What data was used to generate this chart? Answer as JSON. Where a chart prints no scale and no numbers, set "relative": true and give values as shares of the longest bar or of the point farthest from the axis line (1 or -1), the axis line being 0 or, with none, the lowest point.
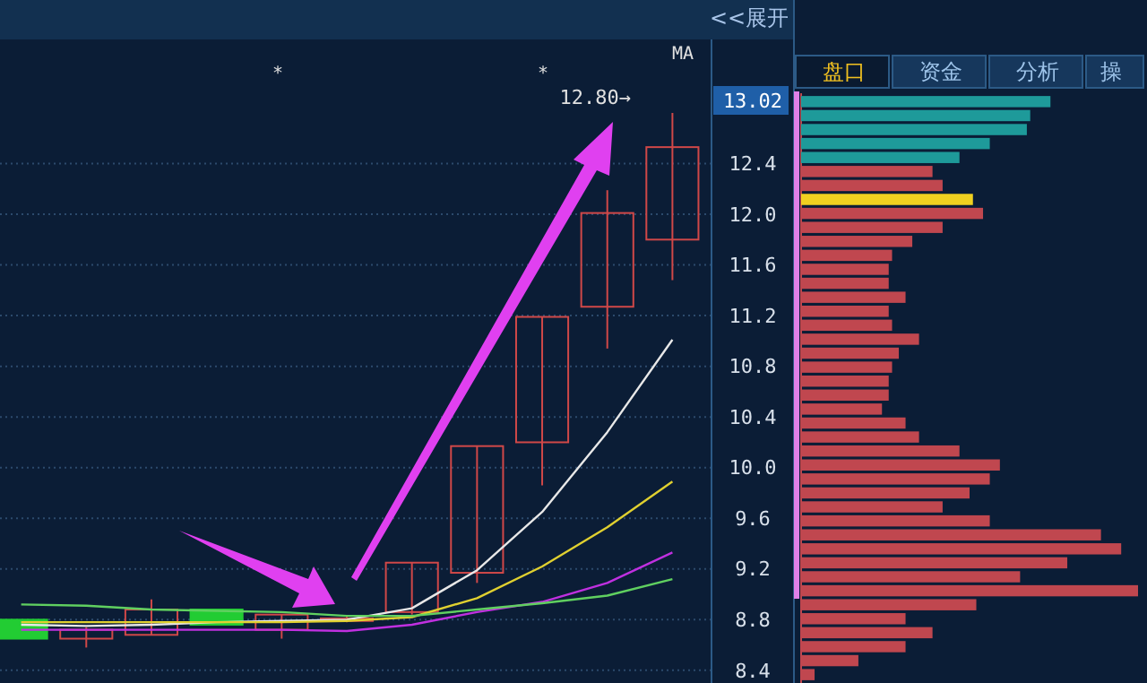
{
  "chart_data": [
    {
      "type": "candlestick",
      "categories": [
        null,
        null,
        null,
        null,
        null,
        null,
        null,
        null,
        null,
        null,
        null
      ],
      "ohlc": [
        [
          8.8,
          8.8,
          8.65,
          8.65
        ],
        [
          8.65,
          8.74,
          8.58,
          8.72
        ],
        [
          8.68,
          8.96,
          8.68,
          8.88
        ],
        [
          8.88,
          8.88,
          8.76,
          8.76
        ],
        [
          8.72,
          8.84,
          8.65,
          8.84
        ],
        [
          8.79,
          8.83,
          8.78,
          8.81
        ],
        [
          8.86,
          9.25,
          8.84,
          9.25
        ],
        [
          9.17,
          10.17,
          9.09,
          10.17
        ],
        [
          10.2,
          11.19,
          9.86,
          11.19
        ],
        [
          11.27,
          12.19,
          10.94,
          12.01
        ],
        [
          11.8,
          12.8,
          11.48,
          12.53
        ]
      ],
      "series": [
        {
          "type": "line",
          "color": "#e8e8e8",
          "values": [
            8.76,
            8.75,
            8.76,
            8.78,
            8.79,
            8.8,
            8.89,
            9.19,
            9.65,
            10.28,
            11.01
          ]
        },
        {
          "type": "line",
          "color": "#e0d030",
          "values": [
            8.78,
            8.78,
            8.78,
            8.78,
            8.78,
            8.79,
            8.82,
            8.97,
            9.22,
            9.53,
            9.89
          ]
        },
        {
          "type": "line",
          "color": "#c030e0",
          "values": [
            8.72,
            8.72,
            8.72,
            8.72,
            8.72,
            8.71,
            8.76,
            8.86,
            8.94,
            9.09,
            9.33
          ]
        },
        {
          "type": "line",
          "color": "#60d060",
          "values": [
            8.92,
            8.91,
            8.88,
            8.87,
            8.86,
            8.83,
            8.83,
            8.88,
            8.93,
            8.99,
            9.12
          ]
        }
      ],
      "ylim": [
        8.3,
        13.38
      ],
      "yticks": [
        8.4,
        8.8,
        9.2,
        9.6,
        {
          "value": 10,
          "label": "10.0"
        },
        10.4,
        10.8,
        11.2,
        11.6,
        {
          "value": 12,
          "label": "12.0"
        },
        12.4
      ],
      "grid": "y",
      "annotations": [
        "*",
        "*",
        "MA",
        "<<展开",
        "12.80→",
        "13.02"
      ]
    },
    {
      "type": "bar",
      "orientation": "horizontal",
      "relative": true,
      "categories": [
        null,
        null,
        null,
        null,
        null,
        null,
        null,
        null,
        null,
        null,
        null,
        null,
        null,
        null,
        null,
        null,
        null,
        null,
        null,
        null,
        null,
        null,
        null,
        null,
        null,
        null,
        null,
        null,
        null,
        null,
        null,
        null,
        null,
        null,
        null,
        null,
        null,
        null,
        null,
        null,
        null,
        null
      ],
      "values": [
        0.74,
        0.68,
        0.67,
        0.56,
        0.47,
        0.39,
        0.42,
        0.51,
        0.54,
        0.42,
        0.33,
        0.27,
        0.26,
        0.26,
        0.31,
        0.26,
        0.27,
        0.35,
        0.29,
        0.27,
        0.26,
        0.26,
        0.24,
        0.31,
        0.35,
        0.47,
        0.59,
        0.56,
        0.5,
        0.42,
        0.56,
        0.89,
        0.95,
        0.79,
        0.65,
        1,
        0.52,
        0.31,
        0.39,
        0.31,
        0.17,
        0.04
      ],
      "colors": [
        "#1e9a9a",
        "#1e9a9a",
        "#1e9a9a",
        "#1e9a9a",
        "#1e9a9a",
        "#c0474f",
        "#c0474f",
        "#f0d020",
        "#c0474f",
        "#c0474f",
        "#c0474f",
        "#c0474f",
        "#c0474f",
        "#c0474f",
        "#c0474f",
        "#c0474f",
        "#c0474f",
        "#c0474f",
        "#c0474f",
        "#c0474f",
        "#c0474f",
        "#c0474f",
        "#c0474f",
        "#c0474f",
        "#c0474f",
        "#c0474f",
        "#c0474f",
        "#c0474f",
        "#c0474f",
        "#c0474f",
        "#c0474f",
        "#c0474f",
        "#c0474f",
        "#c0474f",
        "#c0474f",
        "#c0474f",
        "#c0474f",
        "#c0474f",
        "#c0474f",
        "#c0474f",
        "#c0474f",
        "#c0474f"
      ],
      "annotations": [
        "盘口",
        "资金",
        "分析",
        "操"
      ]
    }
  ]
}
